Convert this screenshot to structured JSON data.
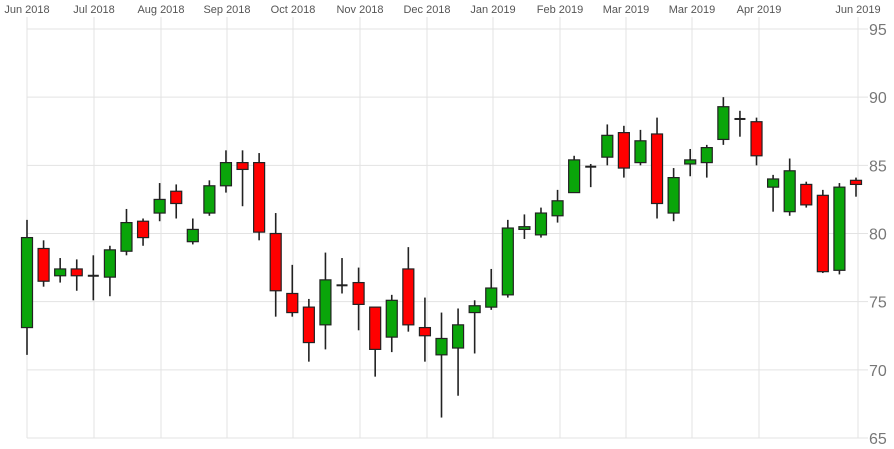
{
  "chart_data": {
    "type": "candlestick",
    "title": "",
    "xlabel": "",
    "ylabel": "",
    "ylim": [
      65,
      95
    ],
    "grid": true,
    "legend": null,
    "y_axis_position": "right",
    "x_axis_position": "top",
    "y_ticks": [
      65,
      70,
      75,
      80,
      85,
      90,
      95
    ],
    "x_tick_labels": [
      "Jun 2018",
      "Jul 2018",
      "Aug 2018",
      "Sep 2018",
      "Oct 2018",
      "Nov 2018",
      "Dec 2018",
      "Jan 2019",
      "Feb 2019",
      "Mar 2019",
      "Mar 2019",
      "Apr 2019",
      "Jun 2019"
    ],
    "colors": {
      "up": "#0aa50a",
      "down": "#ff0000",
      "outline": "#222222",
      "grid": "#e3e3e3"
    },
    "candles": [
      {
        "o": 73.1,
        "h": 81.0,
        "l": 71.1,
        "c": 79.7
      },
      {
        "o": 78.9,
        "h": 79.5,
        "l": 76.1,
        "c": 76.5
      },
      {
        "o": 76.9,
        "h": 78.2,
        "l": 76.4,
        "c": 77.4
      },
      {
        "o": 77.4,
        "h": 78.1,
        "l": 75.8,
        "c": 76.9
      },
      {
        "o": 76.9,
        "h": 78.4,
        "l": 75.1,
        "c": 76.9
      },
      {
        "o": 76.8,
        "h": 79.1,
        "l": 75.4,
        "c": 78.8
      },
      {
        "o": 78.7,
        "h": 81.8,
        "l": 78.4,
        "c": 80.8
      },
      {
        "o": 80.9,
        "h": 81.1,
        "l": 79.1,
        "c": 79.7
      },
      {
        "o": 81.5,
        "h": 83.7,
        "l": 80.9,
        "c": 82.5
      },
      {
        "o": 83.1,
        "h": 83.6,
        "l": 81.1,
        "c": 82.2
      },
      {
        "o": 79.4,
        "h": 81.1,
        "l": 79.2,
        "c": 80.3
      },
      {
        "o": 81.5,
        "h": 83.9,
        "l": 81.3,
        "c": 83.5
      },
      {
        "o": 83.5,
        "h": 86.1,
        "l": 83.0,
        "c": 85.2
      },
      {
        "o": 85.2,
        "h": 86.1,
        "l": 82.0,
        "c": 84.7
      },
      {
        "o": 85.2,
        "h": 85.9,
        "l": 79.5,
        "c": 80.1
      },
      {
        "o": 80.0,
        "h": 81.5,
        "l": 73.9,
        "c": 75.8
      },
      {
        "o": 75.6,
        "h": 77.7,
        "l": 73.9,
        "c": 74.2
      },
      {
        "o": 74.6,
        "h": 75.2,
        "l": 70.6,
        "c": 72.0
      },
      {
        "o": 73.3,
        "h": 78.6,
        "l": 71.5,
        "c": 76.6
      },
      {
        "o": 76.2,
        "h": 78.2,
        "l": 75.6,
        "c": 76.2
      },
      {
        "o": 76.4,
        "h": 77.5,
        "l": 72.9,
        "c": 74.8
      },
      {
        "o": 74.6,
        "h": 74.6,
        "l": 69.5,
        "c": 71.5
      },
      {
        "o": 72.4,
        "h": 75.5,
        "l": 71.3,
        "c": 75.1
      },
      {
        "o": 77.4,
        "h": 79.0,
        "l": 72.8,
        "c": 73.3
      },
      {
        "o": 73.1,
        "h": 75.3,
        "l": 70.6,
        "c": 72.5
      },
      {
        "o": 71.1,
        "h": 74.2,
        "l": 66.5,
        "c": 72.3
      },
      {
        "o": 71.6,
        "h": 74.5,
        "l": 68.1,
        "c": 73.3
      },
      {
        "o": 74.2,
        "h": 75.1,
        "l": 71.2,
        "c": 74.7
      },
      {
        "o": 74.6,
        "h": 77.4,
        "l": 74.4,
        "c": 76.0
      },
      {
        "o": 75.5,
        "h": 81.0,
        "l": 75.3,
        "c": 80.4
      },
      {
        "o": 80.3,
        "h": 81.4,
        "l": 79.6,
        "c": 80.5
      },
      {
        "o": 79.9,
        "h": 81.9,
        "l": 79.7,
        "c": 81.5
      },
      {
        "o": 81.3,
        "h": 83.2,
        "l": 80.8,
        "c": 82.4
      },
      {
        "o": 83.0,
        "h": 85.7,
        "l": 83.0,
        "c": 85.4
      },
      {
        "o": 84.9,
        "h": 85.1,
        "l": 83.4,
        "c": 84.9
      },
      {
        "o": 85.6,
        "h": 88.0,
        "l": 85.0,
        "c": 87.2
      },
      {
        "o": 87.4,
        "h": 87.9,
        "l": 84.1,
        "c": 84.8
      },
      {
        "o": 85.2,
        "h": 87.6,
        "l": 85.0,
        "c": 86.8
      },
      {
        "o": 87.3,
        "h": 88.5,
        "l": 81.1,
        "c": 82.2
      },
      {
        "o": 81.5,
        "h": 84.8,
        "l": 80.9,
        "c": 84.1
      },
      {
        "o": 85.1,
        "h": 86.2,
        "l": 84.2,
        "c": 85.4
      },
      {
        "o": 85.2,
        "h": 86.5,
        "l": 84.1,
        "c": 86.3
      },
      {
        "o": 86.9,
        "h": 90.0,
        "l": 86.5,
        "c": 89.3
      },
      {
        "o": 88.4,
        "h": 89.0,
        "l": 87.1,
        "c": 88.4
      },
      {
        "o": 88.2,
        "h": 88.5,
        "l": 85.0,
        "c": 85.7
      },
      {
        "o": 83.4,
        "h": 84.3,
        "l": 81.6,
        "c": 84.0
      },
      {
        "o": 81.6,
        "h": 85.5,
        "l": 81.3,
        "c": 84.6
      },
      {
        "o": 83.6,
        "h": 83.8,
        "l": 81.9,
        "c": 82.1
      },
      {
        "o": 82.8,
        "h": 83.2,
        "l": 77.1,
        "c": 77.2
      },
      {
        "o": 77.3,
        "h": 83.7,
        "l": 77.0,
        "c": 83.4
      },
      {
        "o": 83.9,
        "h": 84.1,
        "l": 82.7,
        "c": 83.6
      }
    ]
  }
}
